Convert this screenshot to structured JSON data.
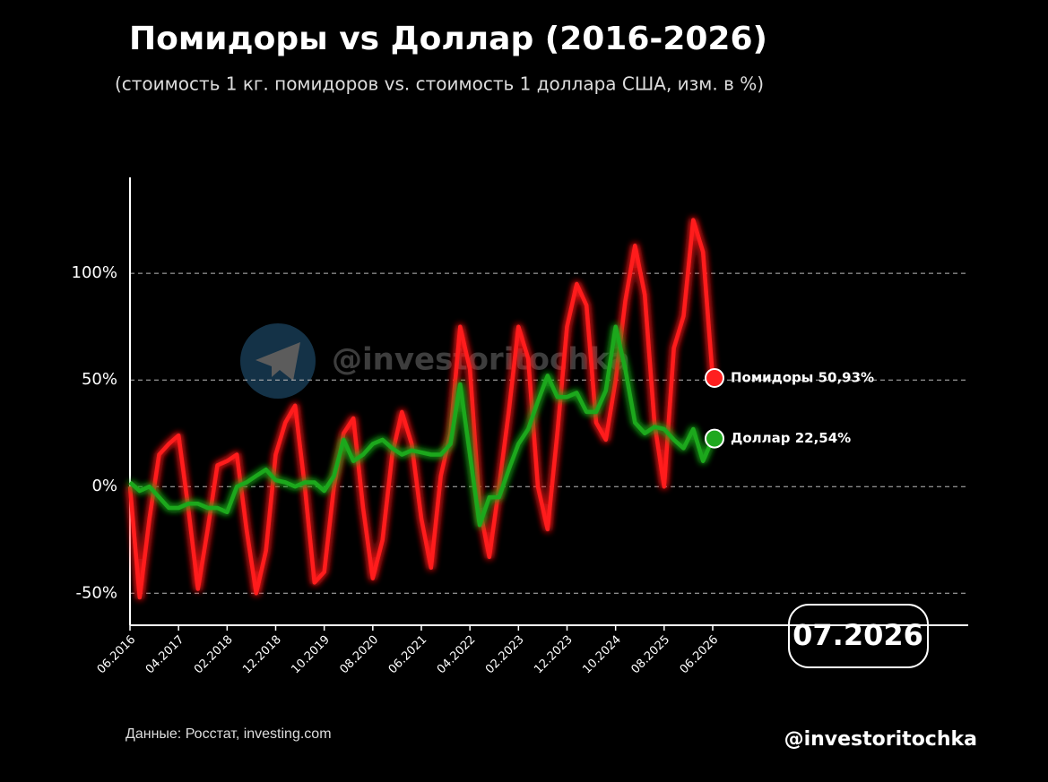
{
  "chart_data": {
    "type": "line",
    "title": "Помидоры vs Доллар (2016-2026)",
    "subtitle": "(стоимость 1 кг. помидоров vs. стоимость 1 доллара США, изм. в %)",
    "watermark": "@investoritochka",
    "source": "Данные: Росстат, investing.com",
    "signature": "@investoritochka",
    "date_badge": "07.2026",
    "categories": [
      "06.2016",
      null,
      null,
      null,
      null,
      "04.2017",
      null,
      null,
      null,
      null,
      "02.2018",
      null,
      null,
      null,
      null,
      "12.2018",
      null,
      null,
      null,
      null,
      "10.2019",
      null,
      null,
      null,
      null,
      "08.2020",
      null,
      null,
      null,
      null,
      "06.2021",
      null,
      null,
      null,
      null,
      "04.2022",
      null,
      null,
      null,
      null,
      "02.2023",
      null,
      null,
      null,
      null,
      "12.2023",
      null,
      null,
      null,
      null,
      "10.2024",
      null,
      null,
      null,
      null,
      "08.2025",
      null,
      null,
      null,
      null,
      "06.2026"
    ],
    "series": [
      {
        "name": "Помидоры",
        "color": "#ff1f1f",
        "end_label": "Помидоры 50,93%",
        "values": [
          0,
          -52,
          -15,
          15,
          20,
          24,
          -10,
          -48,
          -20,
          10,
          12,
          15,
          -20,
          -50,
          -30,
          15,
          30,
          38,
          0,
          -45,
          -40,
          0,
          25,
          32,
          -10,
          -43,
          -25,
          15,
          35,
          20,
          -15,
          -38,
          5,
          25,
          75,
          55,
          -10,
          -33,
          0,
          35,
          75,
          60,
          0,
          -20,
          25,
          75,
          95,
          85,
          30,
          22,
          50,
          87,
          113,
          90,
          30,
          0,
          65,
          80,
          125,
          110,
          50.93
        ]
      },
      {
        "name": "Доллар",
        "color": "#1fa81f",
        "end_label": "Доллар 22,54%",
        "values": [
          2,
          -2,
          0,
          -5,
          -10,
          -10,
          -8,
          -8,
          -10,
          -10,
          -12,
          0,
          2,
          5,
          8,
          3,
          2,
          0,
          2,
          2,
          -2,
          5,
          22,
          12,
          15,
          20,
          22,
          18,
          15,
          17,
          16,
          15,
          15,
          20,
          48,
          15,
          -18,
          -5,
          -5,
          8,
          20,
          27,
          40,
          52,
          42,
          42,
          44,
          35,
          35,
          45,
          75,
          55,
          30,
          25,
          28,
          27,
          22,
          18,
          27,
          12,
          22.54
        ]
      }
    ],
    "ylim": [
      -65,
      145
    ],
    "yticks": [
      {
        "value": -50,
        "label": "-50%"
      },
      {
        "value": 0,
        "label": "0%"
      },
      {
        "value": 50,
        "label": "50%"
      },
      {
        "value": 100,
        "label": "100%"
      }
    ],
    "grid": true
  }
}
